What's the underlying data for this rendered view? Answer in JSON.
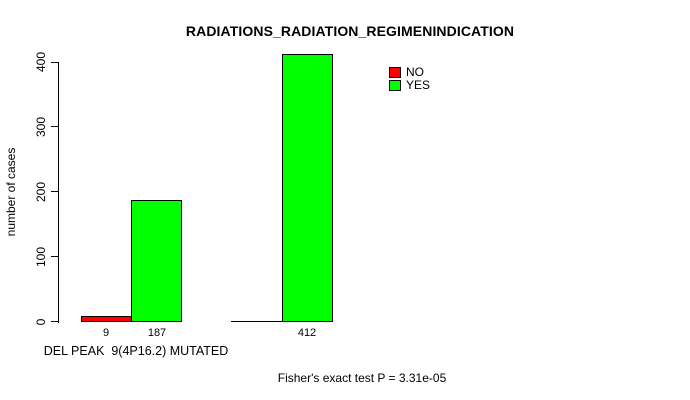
{
  "chart_data": {
    "type": "bar",
    "title": "RADIATIONS_RADIATION_REGIMENINDICATION",
    "ylabel": "number of cases",
    "xlabel": "",
    "ylim": [
      0,
      400
    ],
    "ytick_labels": [
      "0",
      "100",
      "200",
      "300",
      "400"
    ],
    "categories": [
      "DEL PEAK  9(4P16.2) MUTATED",
      ""
    ],
    "series": [
      {
        "name": "NO",
        "color": "#ff0000",
        "values": [
          9,
          0
        ]
      },
      {
        "name": "YES",
        "color": "#00ff00",
        "values": [
          187,
          412
        ]
      }
    ],
    "grid": false,
    "legend": {
      "position": "top-right",
      "entries": [
        {
          "label": "NO",
          "color": "#ff0000"
        },
        {
          "label": "YES",
          "color": "#00ff00"
        }
      ]
    },
    "annotation": "Fisher's exact test P = 3.31e-05"
  },
  "colors": {
    "background": "#ffffff",
    "axis": "#000000",
    "no": "#ff0000",
    "yes": "#00ff00"
  }
}
